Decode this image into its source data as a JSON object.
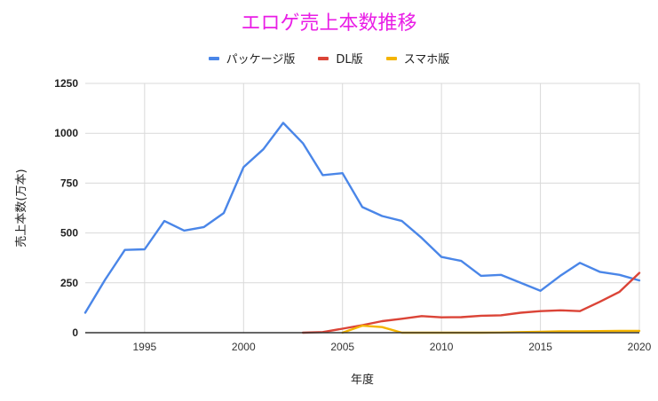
{
  "chart_data": {
    "type": "line",
    "title": "エロゲ売上本数推移",
    "xlabel": "年度",
    "ylabel": "売上本数(万本)",
    "xlim": [
      1992,
      2020
    ],
    "ylim": [
      0,
      1250
    ],
    "x_ticks": [
      1995,
      2000,
      2005,
      2010,
      2015,
      2020
    ],
    "y_ticks": [
      0,
      250,
      500,
      750,
      1000,
      1250
    ],
    "grid": true,
    "legend_position": "top",
    "x": [
      1992,
      1993,
      1994,
      1995,
      1996,
      1997,
      1998,
      1999,
      2000,
      2001,
      2002,
      2003,
      2004,
      2005,
      2006,
      2007,
      2008,
      2009,
      2010,
      2011,
      2012,
      2013,
      2014,
      2015,
      2016,
      2017,
      2018,
      2019,
      2020
    ],
    "series": [
      {
        "name": "パッケージ版",
        "color": "#4a86e8",
        "values": [
          100,
          265,
          415,
          418,
          560,
          512,
          530,
          600,
          830,
          920,
          1052,
          950,
          790,
          800,
          630,
          585,
          560,
          475,
          380,
          360,
          285,
          290,
          250,
          210,
          285,
          350,
          305,
          290,
          262
        ]
      },
      {
        "name": "DL版",
        "color": "#db4437",
        "values": [
          null,
          null,
          null,
          null,
          null,
          null,
          null,
          null,
          null,
          null,
          null,
          0,
          3,
          20,
          38,
          58,
          70,
          83,
          77,
          78,
          85,
          87,
          100,
          108,
          112,
          108,
          155,
          205,
          300
        ]
      },
      {
        "name": "スマホ版",
        "color": "#f4b400",
        "values": [
          null,
          null,
          null,
          null,
          null,
          null,
          null,
          null,
          null,
          null,
          null,
          null,
          null,
          0,
          35,
          28,
          0,
          0,
          0,
          0,
          0,
          1,
          3,
          5,
          7,
          7,
          8,
          9,
          9
        ]
      }
    ]
  }
}
